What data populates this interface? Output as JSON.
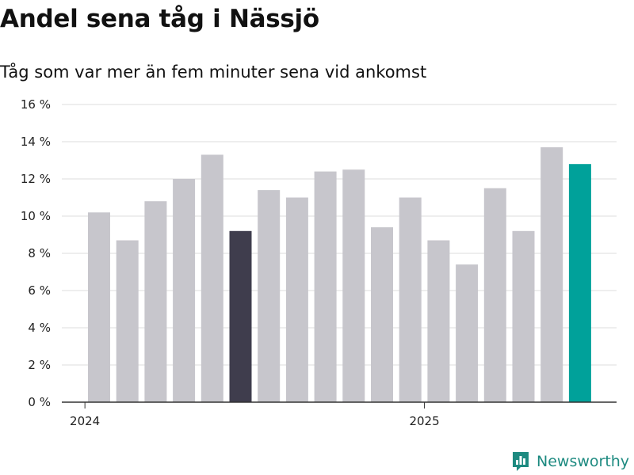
{
  "header": {
    "title": "Andel sena tåg i Nässjö",
    "subtitle": "Tåg som var mer än fem minuter sena vid ankomst"
  },
  "brand": {
    "name": "Newsworthy",
    "icon": "bar-chart-icon",
    "color": "#1d8a80"
  },
  "colors": {
    "default_bar": "#c7c6cc",
    "highlight_dark": "#3f3d4d",
    "highlight_latest": "#00a19a",
    "grid": "#dddddd",
    "axis": "#333333"
  },
  "chart_data": {
    "type": "bar",
    "title": "Andel sena tåg i Nässjö",
    "subtitle": "Tåg som var mer än fem minuter sena vid ankomst",
    "xlabel": "",
    "ylabel": "",
    "y_unit": "%",
    "ylim": [
      0,
      16
    ],
    "yticks": [
      0,
      2,
      4,
      6,
      8,
      10,
      12,
      14,
      16
    ],
    "ytick_labels": [
      "0 %",
      "2 %",
      "4 %",
      "6 %",
      "8 %",
      "10 %",
      "12 %",
      "14 %",
      "16 %"
    ],
    "x_tick_labels": [
      {
        "label": "2024",
        "before_bar": 0
      },
      {
        "label": "2025",
        "before_bar": 12
      }
    ],
    "values": [
      10.2,
      8.7,
      10.8,
      12.0,
      13.3,
      9.2,
      11.4,
      11.0,
      12.4,
      12.5,
      9.4,
      11.0,
      8.7,
      7.4,
      11.5,
      9.2,
      13.7,
      12.8
    ],
    "highlight": {
      "dark": 5,
      "latest": 17
    },
    "grid": true,
    "legend": "none"
  }
}
